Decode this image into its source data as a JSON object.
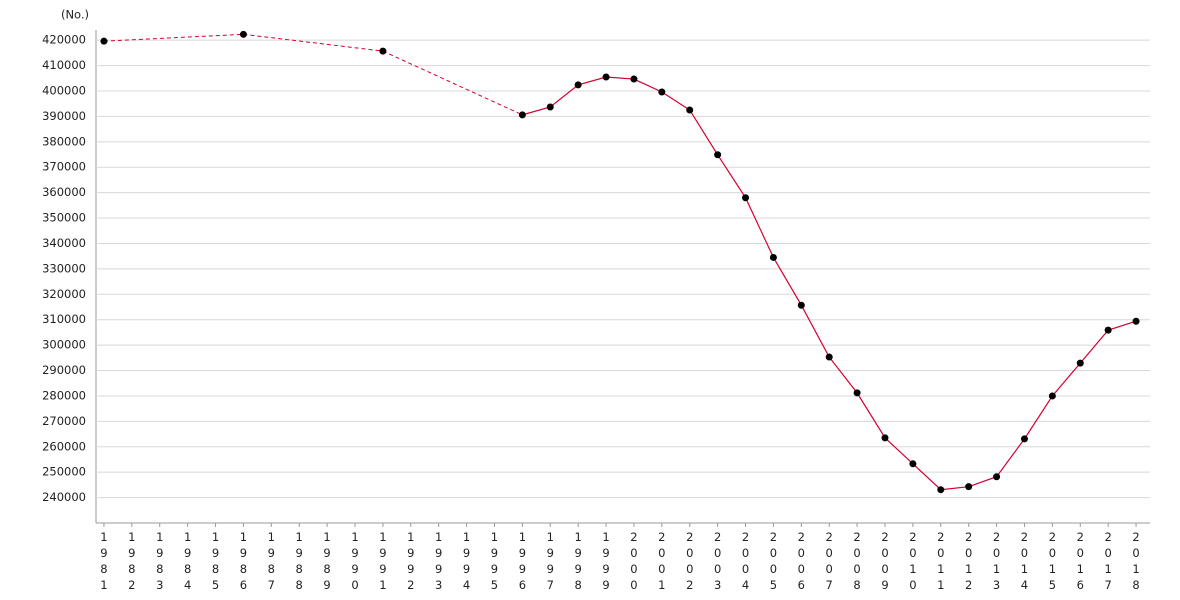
{
  "chart_data": {
    "type": "line",
    "y_label": "(No.)",
    "categories": [
      "1981",
      "1982",
      "1983",
      "1984",
      "1985",
      "1986",
      "1987",
      "1988",
      "1989",
      "1990",
      "1991",
      "1992",
      "1993",
      "1994",
      "1995",
      "1996",
      "1997",
      "1998",
      "1999",
      "2000",
      "2001",
      "2002",
      "2003",
      "2004",
      "2005",
      "2006",
      "2007",
      "2008",
      "2009",
      "2010",
      "2011",
      "2012",
      "2013",
      "2014",
      "2015",
      "2016",
      "2017",
      "2018"
    ],
    "series": [
      {
        "color": "#d40032",
        "marker_color": "#000000",
        "values": [
          419600,
          null,
          null,
          null,
          null,
          422300,
          null,
          null,
          null,
          null,
          415700,
          null,
          null,
          null,
          null,
          390600,
          393700,
          402400,
          405500,
          404700,
          399600,
          392500,
          374900,
          358000,
          334500,
          315700,
          295300,
          281200,
          263500,
          253300,
          243100,
          244300,
          248200,
          263100,
          280000,
          292900,
          305900,
          309400
        ]
      }
    ],
    "ylim": [
      230000,
      424000
    ],
    "yticks": [
      240000,
      250000,
      260000,
      270000,
      280000,
      290000,
      300000,
      310000,
      320000,
      330000,
      340000,
      350000,
      360000,
      370000,
      380000,
      390000,
      400000,
      410000,
      420000
    ],
    "grid": true
  }
}
